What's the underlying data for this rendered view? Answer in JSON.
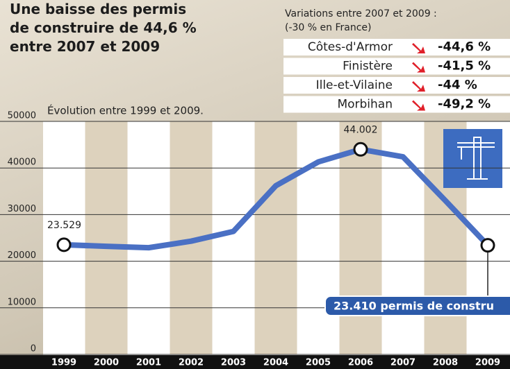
{
  "chart_data": {
    "type": "line",
    "title": "Une baisse des permis de construire de 44,6 % entre 2007 et 2009",
    "subtitle": "Évolution entre 1999 et 2009.",
    "categories": [
      "1999",
      "2000",
      "2001",
      "2002",
      "2003",
      "2004",
      "2005",
      "2006",
      "2007",
      "2008",
      "2009"
    ],
    "values": [
      23529,
      23200,
      22900,
      24300,
      26400,
      36200,
      41300,
      44002,
      42400,
      33000,
      23410
    ],
    "value_labels": [
      "23.529",
      null,
      null,
      null,
      null,
      null,
      null,
      "44.002",
      null,
      null,
      "23.410 permis de constru"
    ],
    "color": "#4a70c4",
    "ylim": [
      0,
      50000
    ],
    "yticks": [
      0,
      10000,
      20000,
      30000,
      40000,
      50000
    ],
    "grid": true
  },
  "table": {
    "title": "Variations entre 2007 et 2009 :",
    "subtitle": "(-30 % en France)",
    "rows": [
      [
        "Côtes-d'Armor",
        "-44,6 %"
      ],
      [
        "Finistère",
        "-41,5 %"
      ],
      [
        "Ille-et-Vilaine",
        "-44 %"
      ],
      [
        "Morbihan",
        "-49,2 %"
      ]
    ]
  }
}
